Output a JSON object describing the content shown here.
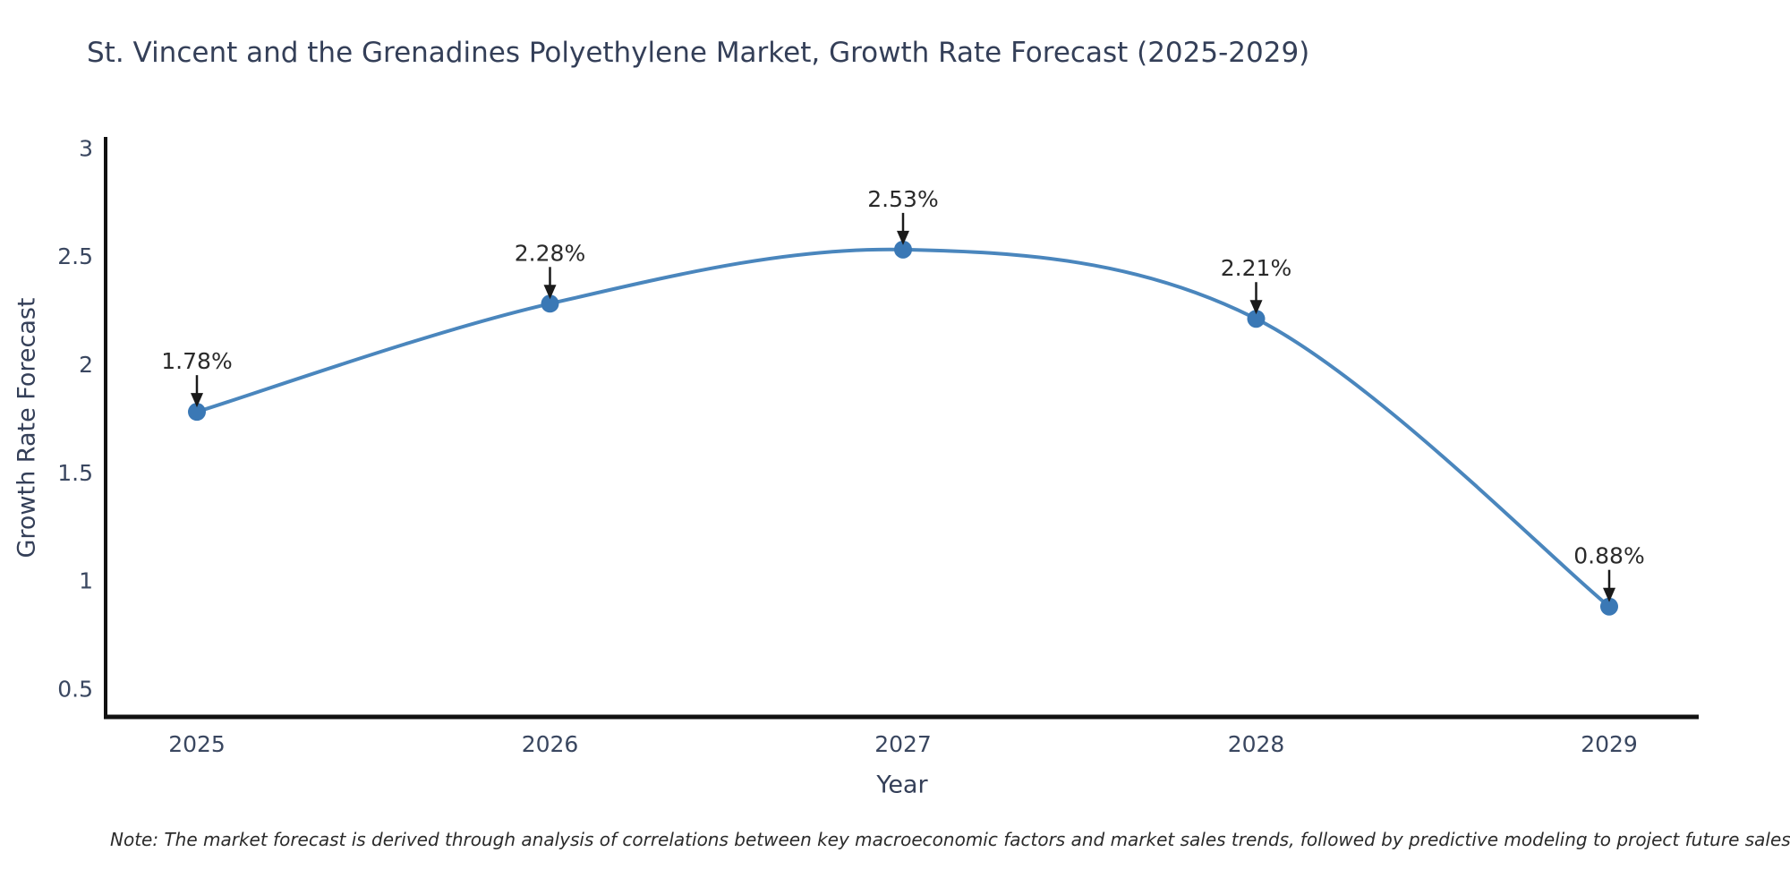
{
  "title": "St. Vincent and the Grenadines Polyethylene Market, Growth Rate Forecast (2025-2029)",
  "note": "Note: The market forecast is derived through analysis of correlations between key macroeconomic factors and market sales trends, followed by predictive modeling to project future sales",
  "chart_data": {
    "type": "line",
    "title": "St. Vincent and the Grenadines Polyethylene Market, Growth Rate Forecast (2025-2029)",
    "xlabel": "Year",
    "ylabel": "Growth Rate Forecast",
    "x": [
      2025,
      2026,
      2027,
      2028,
      2029
    ],
    "series": [
      {
        "name": "Growth Rate Forecast",
        "values": [
          1.78,
          2.28,
          2.53,
          2.21,
          0.88
        ],
        "point_labels": [
          "1.78%",
          "2.28%",
          "2.53%",
          "2.21%",
          "0.88%"
        ]
      }
    ],
    "yticks": [
      0.5,
      1,
      1.5,
      2,
      2.5,
      3
    ],
    "ylim": [
      0.37,
      3.03
    ],
    "grid": false,
    "legend": false,
    "annotations_style": "value label with down arrow above each point",
    "colors": {
      "line": "#4a86bd",
      "marker": "#3a78b5",
      "axis": "#111111",
      "tick_text": "#3a4760",
      "annotation_text": "#2a2a2a",
      "arrow": "#1a1a1a"
    }
  }
}
